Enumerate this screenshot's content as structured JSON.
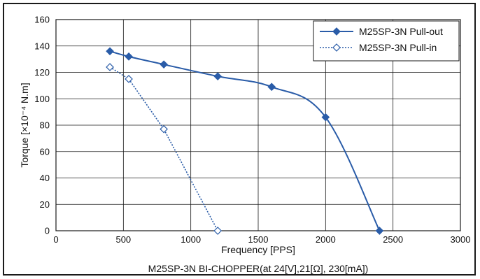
{
  "chart_data": {
    "type": "line",
    "title": "",
    "caption": "M25SP-3N BI-CHOPPER(at 24[V],21[Ω], 230[mA])",
    "xlabel": "Frequency [PPS]",
    "ylabel": "Torque [×10⁻⁴ N.m]",
    "xlim": [
      0,
      3000
    ],
    "ylim": [
      0,
      160
    ],
    "xticks": [
      "0",
      "500",
      "1000",
      "1500",
      "2000",
      "2500",
      "3000"
    ],
    "yticks": [
      "0",
      "20",
      "40",
      "60",
      "80",
      "100",
      "120",
      "140",
      "160"
    ],
    "grid": true,
    "legend": "top-right",
    "series": [
      {
        "name": "M25SP-3N Pull-out",
        "color": "#2a5ca8",
        "style": "solid",
        "marker": "filled-diamond",
        "x": [
          400,
          540,
          800,
          1200,
          1600,
          2000,
          2400
        ],
        "y": [
          136,
          132,
          126,
          117,
          109,
          86,
          0
        ]
      },
      {
        "name": "M25SP-3N Pull-in",
        "color": "#2a5ca8",
        "style": "dotted",
        "marker": "open-diamond",
        "x": [
          400,
          540,
          800,
          1200
        ],
        "y": [
          124,
          115,
          77,
          0
        ]
      }
    ]
  }
}
